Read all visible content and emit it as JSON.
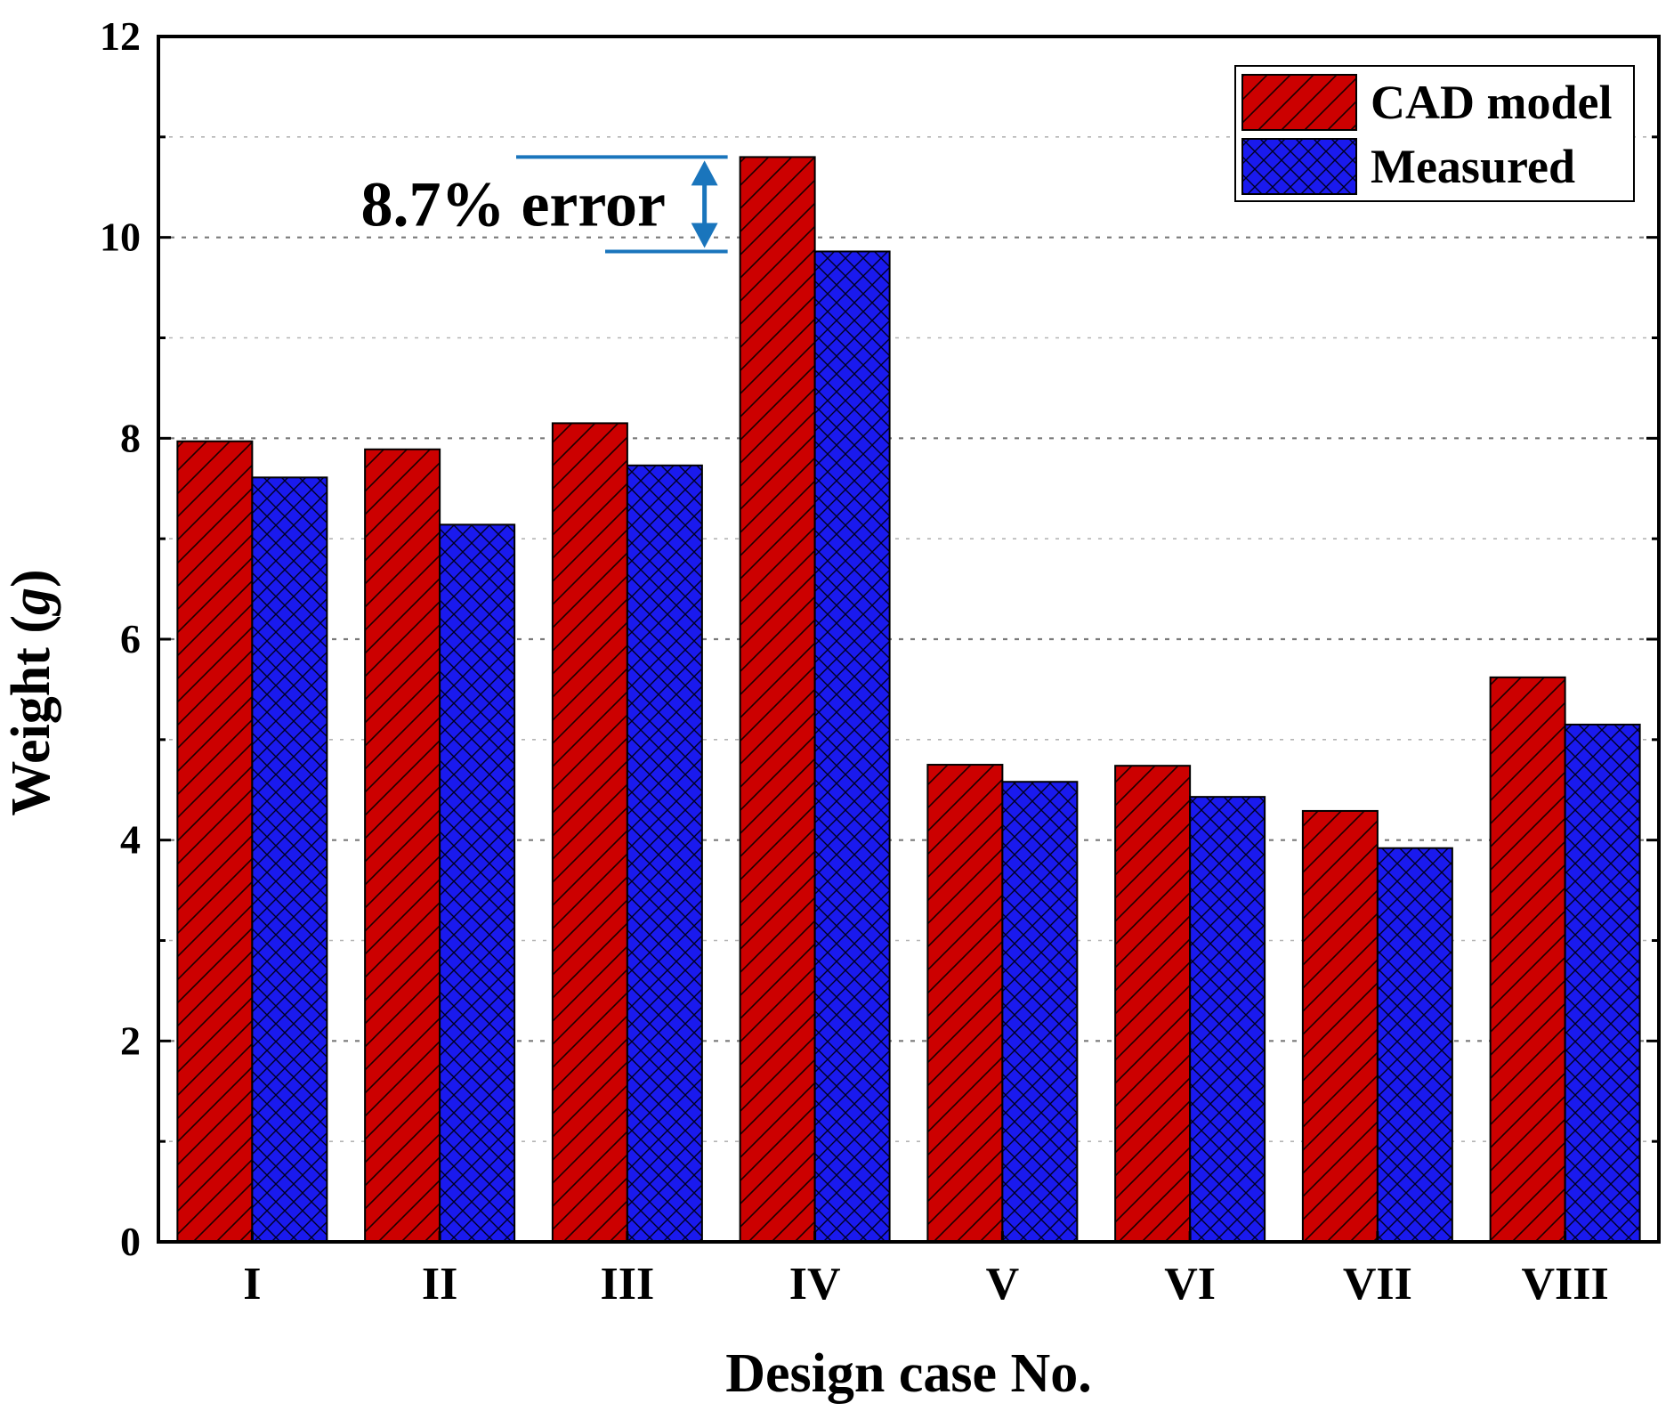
{
  "chart_data": {
    "type": "bar",
    "title": "",
    "xlabel": "Design case No.",
    "ylabel_main": "Weight (",
    "ylabel_unit": "g",
    "ylabel_close": ")",
    "ylim": [
      0,
      12
    ],
    "yticks": [
      0,
      2,
      4,
      6,
      8,
      10,
      12
    ],
    "grid": true,
    "legend_position": "top-right",
    "categories": [
      "I",
      "II",
      "III",
      "IV",
      "V",
      "VI",
      "VII",
      "VIII"
    ],
    "series": [
      {
        "name": "CAD model",
        "color": "#cc0000",
        "pattern": "diagonal-hatch",
        "values": [
          7.97,
          7.89,
          8.15,
          10.8,
          4.75,
          4.74,
          4.29,
          5.62
        ]
      },
      {
        "name": "Measured",
        "color": "#1a1aee",
        "pattern": "cross-hatch",
        "values": [
          7.61,
          7.14,
          7.73,
          9.86,
          4.58,
          4.43,
          3.92,
          5.15
        ]
      }
    ],
    "annotation": {
      "text": "8.7% error",
      "category": "IV",
      "from_value": 10.8,
      "to_value": 9.86,
      "color": "#1a75bc"
    }
  }
}
